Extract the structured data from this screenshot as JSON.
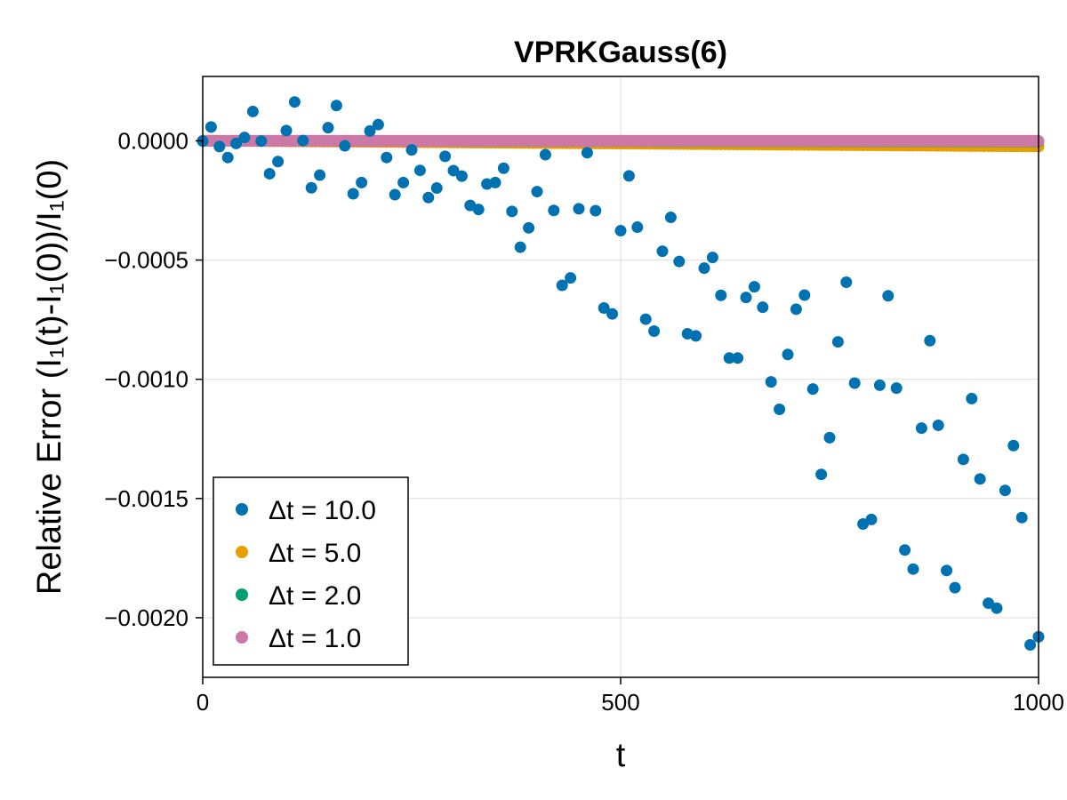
{
  "chart_data": {
    "type": "scatter",
    "title": "VPRKGauss(6)",
    "xlabel": "t",
    "ylabel": "Relative Error (I₁(t)-I₁(0))/I₁(0)",
    "xlim": [
      0,
      1000
    ],
    "ylim": [
      -0.00225,
      0.00027
    ],
    "x_ticks": [
      0,
      500,
      1000
    ],
    "x_tick_labels": [
      "0",
      "500",
      "1000"
    ],
    "y_ticks": [
      0.0,
      -0.0005,
      -0.001,
      -0.0015,
      -0.002
    ],
    "y_tick_labels": [
      "0.0000",
      "−0.0005",
      "−0.0010",
      "−0.0015",
      "−0.0020"
    ],
    "grid": true,
    "legend_position": "bottom-left",
    "series": [
      {
        "name": "Δt = 10.0",
        "color": "#0072b2",
        "step": 10,
        "x": [
          0,
          10,
          20,
          30,
          40,
          50,
          60,
          70,
          80,
          90,
          100,
          110,
          120,
          130,
          140,
          150,
          160,
          170,
          180,
          190,
          200,
          210,
          220,
          230,
          240,
          250,
          260,
          270,
          280,
          290,
          300,
          310,
          320,
          330,
          340,
          350,
          360,
          370,
          380,
          390,
          400,
          410,
          420,
          430,
          440,
          450,
          460,
          470,
          480,
          490,
          500,
          510,
          520,
          530,
          540,
          550,
          560,
          570,
          580,
          590,
          600,
          610,
          620,
          630,
          640,
          650,
          660,
          670,
          680,
          690,
          700,
          710,
          720,
          730,
          740,
          750,
          760,
          770,
          780,
          790,
          800,
          810,
          820,
          830,
          840,
          850,
          860,
          870,
          880,
          890,
          900,
          910,
          920,
          930,
          940,
          950,
          960,
          970,
          980,
          990,
          1000
        ],
        "y": [
          -1e-06,
          5.8e-05,
          -2.4e-05,
          -7e-05,
          -1.1e-05,
          1.4e-05,
          0.000123,
          -1e-06,
          -0.000138,
          -8.7e-05,
          4.3e-05,
          0.000163,
          1e-06,
          -0.000197,
          -0.000144,
          5.5e-05,
          0.000148,
          -2.1e-05,
          -0.000222,
          -0.000175,
          4.1e-05,
          6.8e-05,
          -7e-05,
          -0.000226,
          -0.000175,
          -3.8e-05,
          -0.000124,
          -0.000238,
          -0.000198,
          -6.5e-05,
          -0.000125,
          -0.000148,
          -0.000271,
          -0.000288,
          -0.000181,
          -0.000175,
          -0.000115,
          -0.000296,
          -0.000446,
          -0.000365,
          -0.000213,
          -5.8e-05,
          -0.000292,
          -0.000606,
          -0.000575,
          -0.000285,
          -5e-05,
          -0.000293,
          -0.000701,
          -0.000726,
          -0.000377,
          -0.000147,
          -0.000362,
          -0.000748,
          -0.000798,
          -0.000463,
          -0.000321,
          -0.000506,
          -0.000809,
          -0.000818,
          -0.000534,
          -0.000489,
          -0.000648,
          -0.000911,
          -0.000911,
          -0.000657,
          -0.000612,
          -0.000698,
          -0.001011,
          -0.001126,
          -0.000896,
          -0.000706,
          -0.000647,
          -0.001041,
          -0.001399,
          -0.001245,
          -0.000843,
          -0.000593,
          -0.001016,
          -0.001607,
          -0.001588,
          -0.001025,
          -0.00065,
          -0.001037,
          -0.001716,
          -0.001796,
          -0.001205,
          -0.000838,
          -0.001193,
          -0.001802,
          -0.001874,
          -0.001336,
          -0.001081,
          -0.001418,
          -0.001939,
          -0.00196,
          -0.001466,
          -0.001278,
          -0.00158,
          -0.002114,
          -0.00208
        ]
      },
      {
        "name": "Δt = 5.0",
        "color": "#e69f00",
        "step": 5,
        "drift_end": -2.4e-05
      },
      {
        "name": "Δt = 2.0",
        "color": "#009e73",
        "step": 2,
        "drift_end": -2e-06
      },
      {
        "name": "Δt = 1.0",
        "color": "#cc79a7",
        "step": 1,
        "drift_end": 0.0
      }
    ]
  }
}
